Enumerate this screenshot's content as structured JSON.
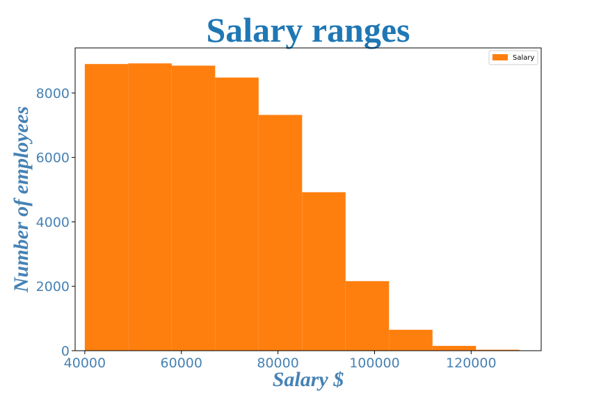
{
  "chart_data": {
    "type": "bar",
    "title": "Salary ranges",
    "xlabel": "Salary $",
    "ylabel": "Number of employees",
    "bin_edges": [
      40000,
      49000,
      58000,
      67000,
      76000,
      85000,
      94000,
      103000,
      112000,
      121000,
      130000
    ],
    "series": [
      {
        "name": "Salary",
        "values": [
          8900,
          8920,
          8850,
          8480,
          7320,
          4920,
          2160,
          650,
          150,
          30
        ]
      }
    ],
    "xlim": [
      38000,
      134500
    ],
    "ylim": [
      0,
      9400
    ],
    "xticks": [
      40000,
      60000,
      80000,
      100000,
      120000
    ],
    "yticks": [
      0,
      2000,
      4000,
      6000,
      8000
    ],
    "xtick_labels": [
      "40000",
      "60000",
      "80000",
      "100000",
      "120000"
    ],
    "ytick_labels": [
      "0",
      "2000",
      "4000",
      "6000",
      "8000"
    ],
    "bar_color": "#ff7f0e",
    "legend_position": "top-right",
    "grid": false
  },
  "colors": {
    "title": "#1f77b4",
    "axis_text": "#4682b4",
    "bar": "#ff7f0e"
  }
}
